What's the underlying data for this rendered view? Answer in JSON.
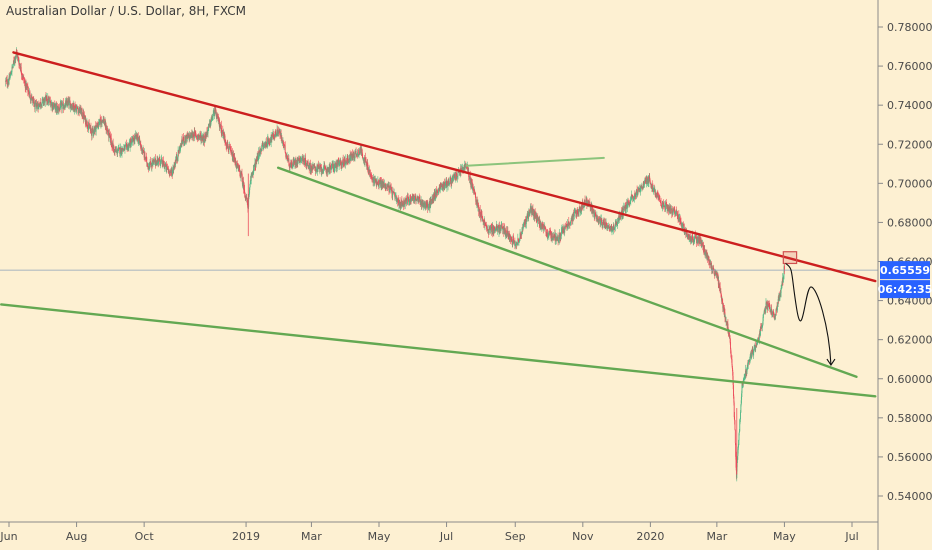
{
  "chart_data": {
    "type": "candlestick",
    "title": "Australian Dollar / U.S. Dollar, 8H, FXCM",
    "x_tick_labels": [
      "Jun",
      "Aug",
      "Oct",
      "2019",
      "Mar",
      "May",
      "Jul",
      "Sep",
      "Nov",
      "2020",
      "Mar",
      "May",
      "Jul"
    ],
    "x_tick_dates": [
      "2018-06-01",
      "2018-08-01",
      "2018-10-01",
      "2019-01-01",
      "2019-03-01",
      "2019-05-01",
      "2019-07-01",
      "2019-09-01",
      "2019-11-01",
      "2020-01-01",
      "2020-03-01",
      "2020-05-01",
      "2020-07-01"
    ],
    "y_tick_labels": [
      "0.78000",
      "0.76000",
      "0.74000",
      "0.72000",
      "0.70000",
      "0.68000",
      "0.66000",
      "0.64000",
      "0.62000",
      "0.60000",
      "0.58000",
      "0.56000",
      "0.54000"
    ],
    "y_tick_values": [
      0.78,
      0.76,
      0.74,
      0.72,
      0.7,
      0.68,
      0.66,
      0.64,
      0.62,
      0.6,
      0.58,
      0.56,
      0.54
    ],
    "ylim": [
      0.533,
      0.791
    ],
    "price_path": [
      [
        "2018-06-01",
        0.752
      ],
      [
        "2018-06-08",
        0.767
      ],
      [
        "2018-06-15",
        0.752
      ],
      [
        "2018-06-25",
        0.739
      ],
      [
        "2018-07-05",
        0.743
      ],
      [
        "2018-07-15",
        0.738
      ],
      [
        "2018-07-25",
        0.741
      ],
      [
        "2018-08-05",
        0.737
      ],
      [
        "2018-08-15",
        0.726
      ],
      [
        "2018-08-25",
        0.733
      ],
      [
        "2018-09-05",
        0.716
      ],
      [
        "2018-09-15",
        0.718
      ],
      [
        "2018-09-25",
        0.724
      ],
      [
        "2018-10-05",
        0.709
      ],
      [
        "2018-10-15",
        0.712
      ],
      [
        "2018-10-26",
        0.705
      ],
      [
        "2018-11-05",
        0.722
      ],
      [
        "2018-11-15",
        0.725
      ],
      [
        "2018-11-25",
        0.723
      ],
      [
        "2018-12-04",
        0.737
      ],
      [
        "2018-12-15",
        0.72
      ],
      [
        "2018-12-28",
        0.704
      ],
      [
        "2019-01-03",
        0.688
      ],
      [
        "2019-01-06",
        0.704
      ],
      [
        "2019-01-15",
        0.718
      ],
      [
        "2019-01-31",
        0.727
      ],
      [
        "2019-02-10",
        0.709
      ],
      [
        "2019-02-20",
        0.713
      ],
      [
        "2019-03-01",
        0.708
      ],
      [
        "2019-03-15",
        0.707
      ],
      [
        "2019-03-31",
        0.711
      ],
      [
        "2019-04-15",
        0.717
      ],
      [
        "2019-04-25",
        0.702
      ],
      [
        "2019-05-10",
        0.698
      ],
      [
        "2019-05-20",
        0.689
      ],
      [
        "2019-06-01",
        0.693
      ],
      [
        "2019-06-15",
        0.688
      ],
      [
        "2019-06-25",
        0.698
      ],
      [
        "2019-07-05",
        0.701
      ],
      [
        "2019-07-19",
        0.709
      ],
      [
        "2019-07-31",
        0.686
      ],
      [
        "2019-08-07",
        0.676
      ],
      [
        "2019-08-20",
        0.677
      ],
      [
        "2019-09-03",
        0.669
      ],
      [
        "2019-09-15",
        0.687
      ],
      [
        "2019-09-30",
        0.674
      ],
      [
        "2019-10-10",
        0.672
      ],
      [
        "2019-10-25",
        0.684
      ],
      [
        "2019-11-05",
        0.691
      ],
      [
        "2019-11-15",
        0.681
      ],
      [
        "2019-11-29",
        0.677
      ],
      [
        "2019-12-13",
        0.691
      ],
      [
        "2019-12-31",
        0.702
      ],
      [
        "2020-01-10",
        0.69
      ],
      [
        "2020-01-24",
        0.685
      ],
      [
        "2020-02-05",
        0.672
      ],
      [
        "2020-02-15",
        0.671
      ],
      [
        "2020-02-25",
        0.658
      ],
      [
        "2020-03-02",
        0.651
      ],
      [
        "2020-03-09",
        0.631
      ],
      [
        "2020-03-13",
        0.622
      ],
      [
        "2020-03-16",
        0.598
      ],
      [
        "2020-03-19",
        0.551
      ],
      [
        "2020-03-24",
        0.596
      ],
      [
        "2020-03-31",
        0.611
      ],
      [
        "2020-04-07",
        0.618
      ],
      [
        "2020-04-15",
        0.638
      ],
      [
        "2020-04-23",
        0.632
      ],
      [
        "2020-04-30",
        0.651
      ],
      [
        "2020-05-01",
        0.6556
      ]
    ],
    "trendlines": [
      {
        "color": "#cc1f1f",
        "points": [
          [
            "2018-06-05",
            0.767
          ],
          [
            "2020-07-22",
            0.65
          ]
        ]
      },
      {
        "color": "#63a852",
        "points": [
          [
            "2019-01-30",
            0.708
          ],
          [
            "2020-07-05",
            0.601
          ]
        ]
      },
      {
        "color": "#63a852",
        "points": [
          [
            "2018-05-25",
            0.638
          ],
          [
            "2020-07-22",
            0.591
          ]
        ]
      },
      {
        "color": "#8cc47c",
        "points": [
          [
            "2019-07-19",
            0.709
          ],
          [
            "2019-11-20",
            0.713
          ]
        ]
      }
    ],
    "highlight_box": {
      "color": "#d05050",
      "x": [
        "2020-04-30",
        "2020-05-12"
      ],
      "y": [
        0.659,
        0.665
      ]
    },
    "projection_path": [
      [
        "2020-05-02",
        0.659
      ],
      [
        "2020-05-12",
        0.645
      ],
      [
        "2020-05-17",
        0.636
      ],
      [
        "2020-05-25",
        0.647
      ],
      [
        "2020-06-01",
        0.645
      ],
      [
        "2020-06-12",
        0.607
      ]
    ],
    "current_price": {
      "label": "0.65559",
      "value": 0.65559,
      "color": "#2962ff"
    },
    "countdown": {
      "label": "06:42:35",
      "color": "#2962ff"
    },
    "colors": {
      "background": "#fdf0d2",
      "bull": "#53b987",
      "bear": "#eb4d5c",
      "price_line": "#8aa0b8",
      "axis_text": "#4a4a4a"
    }
  }
}
